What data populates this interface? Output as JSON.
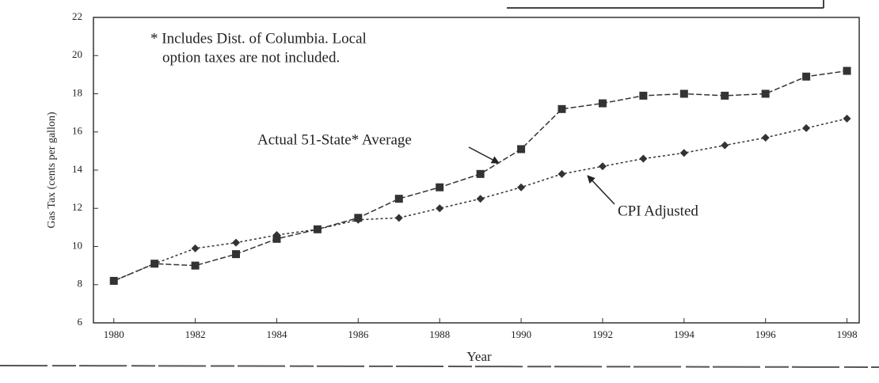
{
  "chart_data": {
    "type": "line",
    "xlabel": "Year",
    "ylabel": "Gas Tax (cents per gallon)",
    "note": [
      "* Includes Dist. of Columbia. Local",
      "option taxes are not included."
    ],
    "x": [
      1980,
      1981,
      1982,
      1983,
      1984,
      1985,
      1986,
      1987,
      1988,
      1989,
      1990,
      1991,
      1992,
      1993,
      1994,
      1995,
      1996,
      1997,
      1998
    ],
    "series": [
      {
        "name": "Actual 51-State* Average",
        "color": "#333333",
        "marker": "square",
        "values": [
          8.2,
          9.1,
          9.0,
          9.6,
          10.4,
          10.9,
          11.5,
          12.5,
          13.1,
          13.8,
          15.1,
          17.2,
          17.5,
          17.9,
          18.0,
          17.9,
          18.0,
          18.9,
          19.2
        ]
      },
      {
        "name": "CPI Adjusted",
        "color": "#333333",
        "marker": "diamond",
        "values": [
          8.2,
          9.1,
          9.9,
          10.2,
          10.6,
          10.9,
          11.4,
          11.5,
          12.0,
          12.5,
          13.1,
          13.8,
          14.2,
          14.6,
          14.9,
          15.3,
          15.7,
          16.2,
          16.7
        ]
      }
    ],
    "xlim": [
      1979.5,
      1998.3
    ],
    "xticks": [
      1980,
      1982,
      1984,
      1986,
      1988,
      1990,
      1992,
      1994,
      1996,
      1998
    ],
    "ylim": [
      6,
      22
    ],
    "yticks": [
      6,
      8,
      10,
      12,
      14,
      16,
      18,
      20,
      22
    ]
  }
}
